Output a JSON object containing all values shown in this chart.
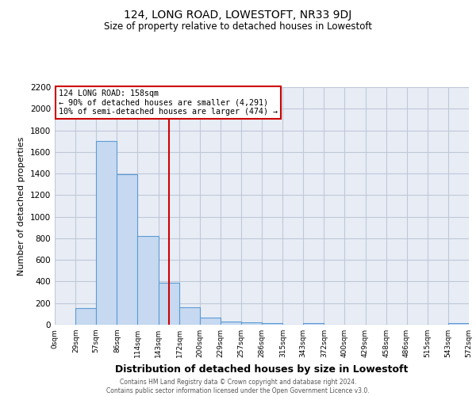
{
  "title": "124, LONG ROAD, LOWESTOFT, NR33 9DJ",
  "subtitle": "Size of property relative to detached houses in Lowestoft",
  "xlabel": "Distribution of detached houses by size in Lowestoft",
  "ylabel": "Number of detached properties",
  "bin_edges": [
    0,
    29,
    57,
    86,
    114,
    143,
    172,
    200,
    229,
    257,
    286,
    315,
    343,
    372,
    400,
    429,
    458,
    486,
    515,
    543,
    572
  ],
  "bin_labels": [
    "0sqm",
    "29sqm",
    "57sqm",
    "86sqm",
    "114sqm",
    "143sqm",
    "172sqm",
    "200sqm",
    "229sqm",
    "257sqm",
    "286sqm",
    "315sqm",
    "343sqm",
    "372sqm",
    "400sqm",
    "429sqm",
    "458sqm",
    "486sqm",
    "515sqm",
    "543sqm",
    "572sqm"
  ],
  "counts": [
    0,
    155,
    1700,
    1390,
    820,
    390,
    160,
    65,
    30,
    20,
    15,
    0,
    15,
    0,
    0,
    0,
    0,
    0,
    0,
    15
  ],
  "bar_color": "#c6d9f0",
  "bar_edge_color": "#5b9bd5",
  "property_size": 158,
  "property_label": "124 LONG ROAD: 158sqm",
  "annotation_line1": "← 90% of detached houses are smaller (4,291)",
  "annotation_line2": "10% of semi-detached houses are larger (474) →",
  "vline_color": "#cc0000",
  "vline_x": 158,
  "annotation_box_color": "#cc0000",
  "ylim": [
    0,
    2200
  ],
  "yticks": [
    0,
    200,
    400,
    600,
    800,
    1000,
    1200,
    1400,
    1600,
    1800,
    2000,
    2200
  ],
  "grid_color": "#c0c8d8",
  "bg_color": "#e8edf5",
  "footer_line1": "Contains HM Land Registry data © Crown copyright and database right 2024.",
  "footer_line2": "Contains public sector information licensed under the Open Government Licence v3.0."
}
